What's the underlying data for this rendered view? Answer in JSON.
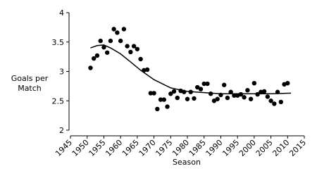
{
  "chart_data": {
    "type": "scatter",
    "xlabel": "Season",
    "ylabel": [
      "Goals per",
      "Match"
    ],
    "x": [
      1951,
      1952,
      1953,
      1954,
      1955,
      1956,
      1957,
      1958,
      1959,
      1960,
      1961,
      1962,
      1963,
      1964,
      1965,
      1966,
      1967,
      1968,
      1969,
      1970,
      1971,
      1972,
      1973,
      1974,
      1975,
      1976,
      1977,
      1978,
      1979,
      1980,
      1981,
      1982,
      1983,
      1984,
      1985,
      1986,
      1987,
      1988,
      1989,
      1990,
      1991,
      1992,
      1993,
      1994,
      1995,
      1996,
      1997,
      1998,
      1999,
      2000,
      2001,
      2002,
      2003,
      2004,
      2005,
      2006,
      2007,
      2008,
      2009,
      2010
    ],
    "values": [
      3.06,
      3.22,
      3.27,
      3.52,
      3.41,
      3.32,
      3.52,
      3.72,
      3.66,
      3.52,
      3.72,
      3.43,
      3.33,
      3.43,
      3.38,
      3.21,
      3.02,
      3.03,
      2.63,
      2.63,
      2.36,
      2.52,
      2.52,
      2.4,
      2.62,
      2.66,
      2.55,
      2.67,
      2.65,
      2.53,
      2.65,
      2.54,
      2.73,
      2.7,
      2.79,
      2.79,
      2.62,
      2.5,
      2.53,
      2.6,
      2.77,
      2.55,
      2.65,
      2.59,
      2.59,
      2.61,
      2.56,
      2.68,
      2.53,
      2.8,
      2.61,
      2.65,
      2.66,
      2.57,
      2.5,
      2.45,
      2.65,
      2.48,
      2.78,
      2.8
    ],
    "color": "#000000",
    "fit": {
      "x": [
        1951,
        1953,
        1955,
        1957,
        1960,
        1963,
        1966,
        1970,
        1975,
        1980,
        1985,
        1990,
        1995,
        2000,
        2005,
        2011
      ],
      "values": [
        3.4,
        3.44,
        3.45,
        3.4,
        3.3,
        3.16,
        3.02,
        2.86,
        2.72,
        2.66,
        2.64,
        2.62,
        2.62,
        2.62,
        2.62,
        2.63
      ]
    },
    "xlim": [
      1945,
      2015
    ],
    "xticks": [
      1945,
      1950,
      1955,
      1960,
      1965,
      1970,
      1975,
      1980,
      1985,
      1990,
      1995,
      2000,
      2005,
      2010,
      2015
    ],
    "ylim": [
      2,
      4
    ],
    "yticks": [
      2,
      2.5,
      3,
      3.5,
      4
    ]
  }
}
